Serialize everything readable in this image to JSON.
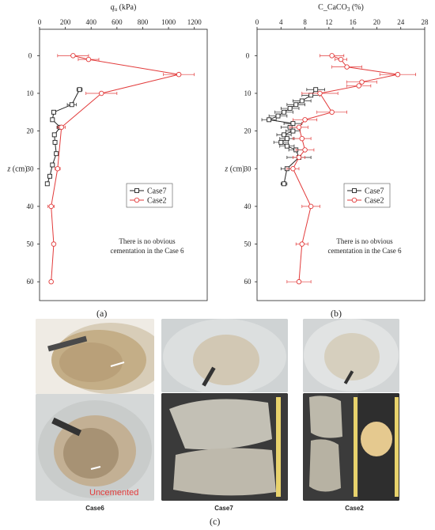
{
  "charts": {
    "a": {
      "panel_label": "(a)",
      "chart_data": {
        "type": "line",
        "xlabel_var": "q",
        "xlabel_sub": "u",
        "xlabel_unit": " (kPa)",
        "ylabel": "z (cm)",
        "xlim": [
          0,
          1300
        ],
        "ylim": [
          -7,
          65
        ],
        "xticks": [
          0,
          200,
          400,
          600,
          800,
          1000,
          1200
        ],
        "yticks": [
          0,
          10,
          20,
          30,
          40,
          50,
          60
        ],
        "legend_position": "middle-right",
        "series": [
          {
            "name": "Case7",
            "color": "#222222",
            "marker": "square",
            "points": [
              {
                "x": 310,
                "y": 9,
                "err": 20
              },
              {
                "x": 250,
                "y": 13,
                "err": 35
              },
              {
                "x": 110,
                "y": 15,
                "err": 15
              },
              {
                "x": 100,
                "y": 17,
                "err": 15
              },
              {
                "x": 160,
                "y": 19,
                "err": 25
              },
              {
                "x": 115,
                "y": 21,
                "err": 15
              },
              {
                "x": 120,
                "y": 23,
                "err": 15
              },
              {
                "x": 130,
                "y": 26,
                "err": 15
              },
              {
                "x": 100,
                "y": 29,
                "err": 15
              },
              {
                "x": 80,
                "y": 32,
                "err": 15
              },
              {
                "x": 60,
                "y": 34,
                "err": 10
              }
            ]
          },
          {
            "name": "Case2",
            "color": "#e23b3b",
            "marker": "circle",
            "points": [
              {
                "x": 260,
                "y": 0,
                "err": 120
              },
              {
                "x": 380,
                "y": 1,
                "err": 80
              },
              {
                "x": 1080,
                "y": 5,
                "err": 120
              },
              {
                "x": 480,
                "y": 10,
                "err": 120
              },
              {
                "x": 170,
                "y": 19,
                "err": 30
              },
              {
                "x": 140,
                "y": 30,
                "err": 20
              },
              {
                "x": 90,
                "y": 40,
                "err": 25
              },
              {
                "x": 110,
                "y": 50,
                "err": 10
              },
              {
                "x": 90,
                "y": 60,
                "err": 10
              }
            ]
          }
        ],
        "annotation": [
          "There is no obvious",
          "cementation in the Case 6"
        ]
      }
    },
    "b": {
      "panel_label": "(b)",
      "chart_data": {
        "type": "line",
        "xlabel_var": "C_CaCO",
        "xlabel_sub": "3",
        "xlabel_unit": " (%)",
        "ylabel": "z (cm)",
        "xlim": [
          0,
          28
        ],
        "ylim": [
          -7,
          65
        ],
        "xticks": [
          0,
          4,
          8,
          12,
          16,
          20,
          24,
          28
        ],
        "yticks": [
          0,
          10,
          20,
          30,
          40,
          50,
          60
        ],
        "legend_position": "middle-right",
        "series": [
          {
            "name": "Case7",
            "color": "#222222",
            "marker": "square",
            "points": [
              {
                "x": 9.8,
                "y": 9,
                "err": 1.5
              },
              {
                "x": 9.0,
                "y": 10.5,
                "err": 1.5
              },
              {
                "x": 7.5,
                "y": 12,
                "err": 1.5
              },
              {
                "x": 6.5,
                "y": 13,
                "err": 1.5
              },
              {
                "x": 5.5,
                "y": 14,
                "err": 1.5
              },
              {
                "x": 4.5,
                "y": 15,
                "err": 1.5
              },
              {
                "x": 3.5,
                "y": 16,
                "err": 1.5
              },
              {
                "x": 2.0,
                "y": 17,
                "err": 1.2
              },
              {
                "x": 6.0,
                "y": 18,
                "err": 1.5
              },
              {
                "x": 5.5,
                "y": 19,
                "err": 1.5
              },
              {
                "x": 6.0,
                "y": 20,
                "err": 1.2
              },
              {
                "x": 4.5,
                "y": 21,
                "err": 1.2
              },
              {
                "x": 5.0,
                "y": 22,
                "err": 1.2
              },
              {
                "x": 4.0,
                "y": 23,
                "err": 1.2
              },
              {
                "x": 5.0,
                "y": 24,
                "err": 1.2
              },
              {
                "x": 6.5,
                "y": 25,
                "err": 1.2
              },
              {
                "x": 7.0,
                "y": 27,
                "err": 2.0
              },
              {
                "x": 5.0,
                "y": 30,
                "err": 1.0
              },
              {
                "x": 4.5,
                "y": 34,
                "err": 0.5
              }
            ]
          },
          {
            "name": "Case2",
            "color": "#e23b3b",
            "marker": "circle",
            "points": [
              {
                "x": 12.5,
                "y": 0,
                "err": 2.0
              },
              {
                "x": 14.0,
                "y": 1,
                "err": 1.0
              },
              {
                "x": 15.0,
                "y": 3,
                "err": 2.5
              },
              {
                "x": 23.5,
                "y": 5,
                "err": 3.0
              },
              {
                "x": 17.5,
                "y": 7,
                "err": 2.5
              },
              {
                "x": 17.0,
                "y": 8,
                "err": 2.0
              },
              {
                "x": 10.5,
                "y": 10,
                "err": 3.0
              },
              {
                "x": 12.5,
                "y": 15,
                "err": 2.5
              },
              {
                "x": 8.0,
                "y": 17,
                "err": 2.0
              },
              {
                "x": 7.0,
                "y": 19,
                "err": 1.5
              },
              {
                "x": 7.5,
                "y": 22,
                "err": 1.5
              },
              {
                "x": 8.0,
                "y": 25,
                "err": 1.5
              },
              {
                "x": 7.0,
                "y": 27,
                "err": 1.0
              },
              {
                "x": 6.0,
                "y": 30,
                "err": 1.0
              },
              {
                "x": 9.0,
                "y": 40,
                "err": 1.5
              },
              {
                "x": 7.5,
                "y": 50,
                "err": 1.0
              },
              {
                "x": 7.0,
                "y": 60,
                "err": 2.0
              }
            ]
          }
        ],
        "annotation": [
          "There is no obvious",
          "cementation in the Case 6"
        ]
      }
    }
  },
  "figure_c": {
    "panel_label": "(c)",
    "uncemented_label": "Uncemented",
    "captions": {
      "case6": "Case6",
      "case7": "Case7",
      "case2": "Case2"
    },
    "colors": {
      "sand": "#c9b48f",
      "sand_light": "#e6dac2",
      "container": "#d7d9da",
      "board": "#3f3f3f",
      "red": "#e23b3b"
    }
  }
}
